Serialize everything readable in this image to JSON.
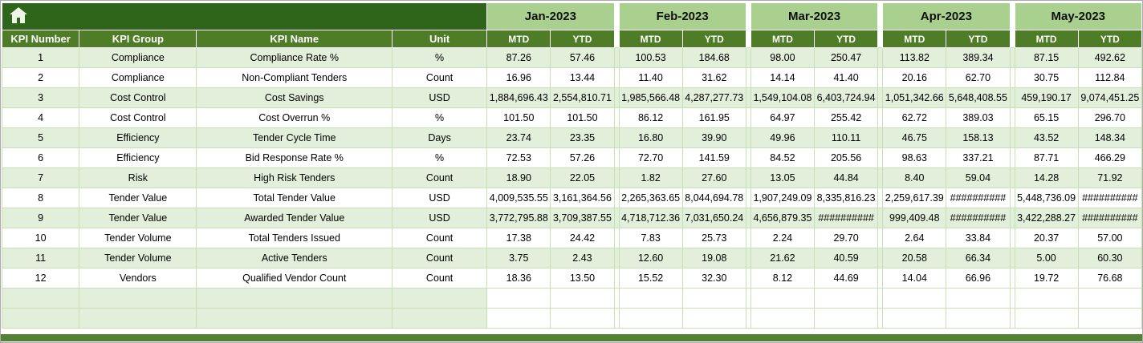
{
  "colors": {
    "corner": "#2F641B",
    "header": "#4E7C27",
    "month": "#A9D08E",
    "band": "#E2EFDA",
    "grid": "#C6E0B4",
    "bar": "#548235"
  },
  "icons": {
    "home": "house-glyph"
  },
  "table": {
    "left_headers": [
      "KPI Number",
      "KPI Group",
      "KPI Name",
      "Unit"
    ],
    "months": [
      "Jan-2023",
      "Feb-2023",
      "Mar-2023",
      "Apr-2023",
      "May-2023"
    ],
    "period_headers": [
      "MTD",
      "YTD"
    ],
    "empty_row_count": 2,
    "rows": [
      {
        "kpi_number": "1",
        "kpi_group": "Compliance",
        "kpi_name": "Compliance Rate %",
        "unit": "%",
        "values": [
          "87.26",
          "57.46",
          "100.53",
          "184.68",
          "98.00",
          "250.47",
          "113.82",
          "389.34",
          "87.15",
          "492.62"
        ]
      },
      {
        "kpi_number": "2",
        "kpi_group": "Compliance",
        "kpi_name": "Non-Compliant Tenders",
        "unit": "Count",
        "values": [
          "16.96",
          "13.44",
          "11.40",
          "31.62",
          "14.14",
          "41.40",
          "20.16",
          "62.70",
          "30.75",
          "112.84"
        ]
      },
      {
        "kpi_number": "3",
        "kpi_group": "Cost Control",
        "kpi_name": "Cost Savings",
        "unit": "USD",
        "values": [
          "1,884,696.43",
          "2,554,810.71",
          "1,985,566.48",
          "4,287,277.73",
          "1,549,104.08",
          "6,403,724.94",
          "1,051,342.66",
          "5,648,408.55",
          "459,190.17",
          "9,074,451.25"
        ]
      },
      {
        "kpi_number": "4",
        "kpi_group": "Cost Control",
        "kpi_name": "Cost Overrun %",
        "unit": "%",
        "values": [
          "101.50",
          "101.50",
          "86.12",
          "161.95",
          "64.97",
          "255.42",
          "62.72",
          "389.03",
          "65.15",
          "296.70"
        ]
      },
      {
        "kpi_number": "5",
        "kpi_group": "Efficiency",
        "kpi_name": "Tender Cycle Time",
        "unit": "Days",
        "values": [
          "23.74",
          "23.35",
          "16.80",
          "39.90",
          "49.96",
          "110.11",
          "46.75",
          "158.13",
          "43.52",
          "148.34"
        ]
      },
      {
        "kpi_number": "6",
        "kpi_group": "Efficiency",
        "kpi_name": "Bid Response Rate %",
        "unit": "%",
        "values": [
          "72.53",
          "57.26",
          "72.70",
          "141.59",
          "84.52",
          "205.56",
          "98.63",
          "337.21",
          "87.71",
          "466.29"
        ]
      },
      {
        "kpi_number": "7",
        "kpi_group": "Risk",
        "kpi_name": "High Risk Tenders",
        "unit": "Count",
        "values": [
          "18.90",
          "22.05",
          "1.82",
          "27.60",
          "13.05",
          "44.84",
          "8.40",
          "59.04",
          "14.28",
          "71.92"
        ]
      },
      {
        "kpi_number": "8",
        "kpi_group": "Tender Value",
        "kpi_name": "Total Tender Value",
        "unit": "USD",
        "values": [
          "4,009,535.55",
          "3,161,364.56",
          "2,265,363.65",
          "8,044,694.78",
          "1,907,249.09",
          "8,335,816.23",
          "2,259,617.39",
          "##########",
          "5,448,736.09",
          "##########"
        ]
      },
      {
        "kpi_number": "9",
        "kpi_group": "Tender Value",
        "kpi_name": "Awarded Tender Value",
        "unit": "USD",
        "values": [
          "3,772,795.88",
          "3,709,387.55",
          "4,718,712.36",
          "7,031,650.24",
          "4,656,879.35",
          "##########",
          "999,409.48",
          "##########",
          "3,422,288.27",
          "##########"
        ]
      },
      {
        "kpi_number": "10",
        "kpi_group": "Tender Volume",
        "kpi_name": "Total Tenders Issued",
        "unit": "Count",
        "values": [
          "17.38",
          "24.42",
          "7.83",
          "25.73",
          "2.24",
          "29.70",
          "2.64",
          "33.84",
          "20.37",
          "57.00"
        ]
      },
      {
        "kpi_number": "11",
        "kpi_group": "Tender Volume",
        "kpi_name": "Active Tenders",
        "unit": "Count",
        "values": [
          "3.75",
          "2.43",
          "12.60",
          "19.08",
          "21.62",
          "40.59",
          "20.58",
          "66.34",
          "5.00",
          "60.30"
        ]
      },
      {
        "kpi_number": "12",
        "kpi_group": "Vendors",
        "kpi_name": "Qualified Vendor Count",
        "unit": "Count",
        "values": [
          "18.36",
          "13.50",
          "15.52",
          "32.30",
          "8.12",
          "44.69",
          "14.04",
          "66.96",
          "19.72",
          "76.68"
        ]
      }
    ]
  }
}
